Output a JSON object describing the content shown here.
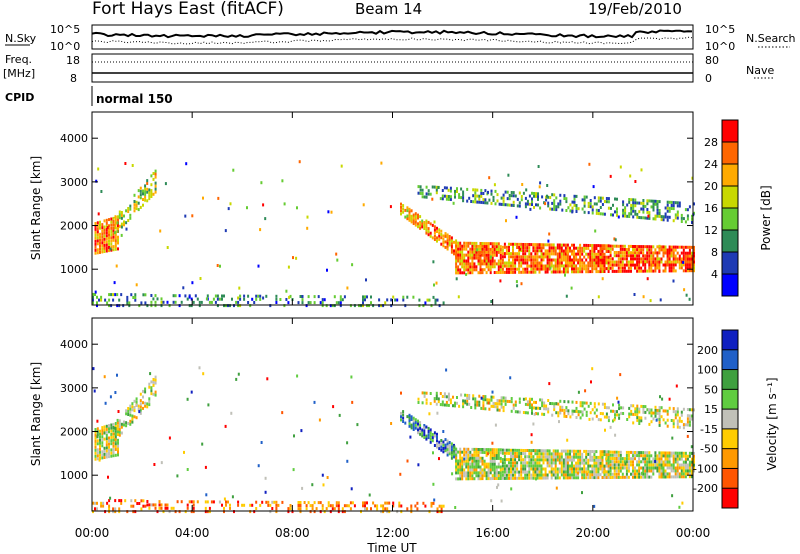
{
  "header": {
    "title": "Fort Hays East (fitACF)",
    "beam": "Beam 14",
    "date": "19/Feb/2010"
  },
  "noise_panel": {
    "left_label": "N.Sky",
    "left_ticks": [
      "10^5",
      "10^0"
    ],
    "right_ticks": [
      "10^5",
      "10^0"
    ],
    "right_label": "N.Search"
  },
  "freq_panel": {
    "left_label_line1": "Freq.",
    "left_label_line2": "[MHz]",
    "left_ticks": [
      "18",
      "8"
    ],
    "right_ticks": [
      "80",
      "0"
    ],
    "right_label": "Nave"
  },
  "cpid": {
    "label": "CPID",
    "value": "normal 150"
  },
  "chart_data": [
    {
      "type": "heatmap",
      "name": "power",
      "ylabel": "Slant Range [km]",
      "xlabel": "Time UT",
      "x_ticks": [
        "00:00",
        "04:00",
        "08:00",
        "12:00",
        "16:00",
        "20:00",
        "00:00"
      ],
      "x_range_hours": [
        0,
        24
      ],
      "y_ticks": [
        1000,
        2000,
        3000,
        4000
      ],
      "ylim": [
        180,
        4600
      ],
      "colorbar": {
        "label": "Power [dB]",
        "ticks": [
          4,
          8,
          12,
          16,
          20,
          24,
          28
        ],
        "range": [
          0,
          32
        ],
        "colors": [
          "#0000ff",
          "#1e3ab4",
          "#2e8b57",
          "#66cc33",
          "#c8d800",
          "#ffaa00",
          "#ff6600",
          "#ff0000"
        ]
      },
      "bands": [
        {
          "start": 0.1,
          "end": 1.0,
          "r0": 1400,
          "r1": 2150,
          "r0_end": 1500,
          "r1_end": 2300,
          "density": 0.9,
          "level": 0.75
        },
        {
          "start": 0.9,
          "end": 2.5,
          "r0": 1850,
          "r1": 2300,
          "r0_end": 2800,
          "r1_end": 3350,
          "density": 0.55,
          "level": 0.55
        },
        {
          "start": 12.3,
          "end": 14.5,
          "r0": 2300,
          "r1": 2600,
          "r0_end": 1350,
          "r1_end": 1750,
          "density": 0.8,
          "level": 0.7
        },
        {
          "start": 14.5,
          "end": 24.0,
          "r0": 950,
          "r1": 1700,
          "r0_end": 1000,
          "r1_end": 1600,
          "density": 0.85,
          "level": 0.8
        },
        {
          "start": 13.0,
          "end": 24.0,
          "r0": 2700,
          "r1": 3000,
          "r0_end": 2100,
          "r1_end": 2600,
          "density": 0.45,
          "level": 0.35
        },
        {
          "start": 0.0,
          "end": 14.0,
          "r0": 200,
          "r1": 520,
          "r0_end": 200,
          "r1_end": 450,
          "density": 0.25,
          "level": 0.3
        }
      ]
    },
    {
      "type": "heatmap",
      "name": "velocity",
      "ylabel": "Slant Range [km]",
      "xlabel": "Time UT",
      "x_ticks": [
        "00:00",
        "04:00",
        "08:00",
        "12:00",
        "16:00",
        "20:00",
        "00:00"
      ],
      "x_range_hours": [
        0,
        24
      ],
      "y_ticks": [
        1000,
        2000,
        3000,
        4000
      ],
      "ylim": [
        180,
        4600
      ],
      "colorbar": {
        "label": "Velocity [m s⁻¹]",
        "ticks": [
          "200",
          "100",
          "50",
          "15",
          "-15",
          "-50",
          "-100",
          "-200"
        ],
        "colors": [
          "#1020c0",
          "#2060c8",
          "#3fa03f",
          "#60cc40",
          "#c0c0b8",
          "#ffcc00",
          "#ff9900",
          "#ff5500",
          "#ff0000"
        ]
      },
      "bands": [
        {
          "start": 0.1,
          "end": 1.0,
          "r0": 1400,
          "r1": 2150,
          "r0_end": 1500,
          "r1_end": 2300,
          "density": 0.9,
          "level": 0.5
        },
        {
          "start": 0.9,
          "end": 2.5,
          "r0": 1850,
          "r1": 2300,
          "r0_end": 2800,
          "r1_end": 3350,
          "density": 0.55,
          "level": 0.5
        },
        {
          "start": 12.3,
          "end": 14.5,
          "r0": 2300,
          "r1": 2600,
          "r0_end": 1350,
          "r1_end": 1750,
          "density": 0.8,
          "level": 0.25
        },
        {
          "start": 14.5,
          "end": 24.0,
          "r0": 950,
          "r1": 1700,
          "r0_end": 1000,
          "r1_end": 1600,
          "density": 0.85,
          "level": 0.5
        },
        {
          "start": 13.0,
          "end": 24.0,
          "r0": 2700,
          "r1": 3000,
          "r0_end": 2100,
          "r1_end": 2600,
          "density": 0.45,
          "level": 0.5
        },
        {
          "start": 0.0,
          "end": 14.0,
          "r0": 200,
          "r1": 520,
          "r0_end": 200,
          "r1_end": 450,
          "density": 0.3,
          "level": 0.75
        }
      ]
    }
  ]
}
